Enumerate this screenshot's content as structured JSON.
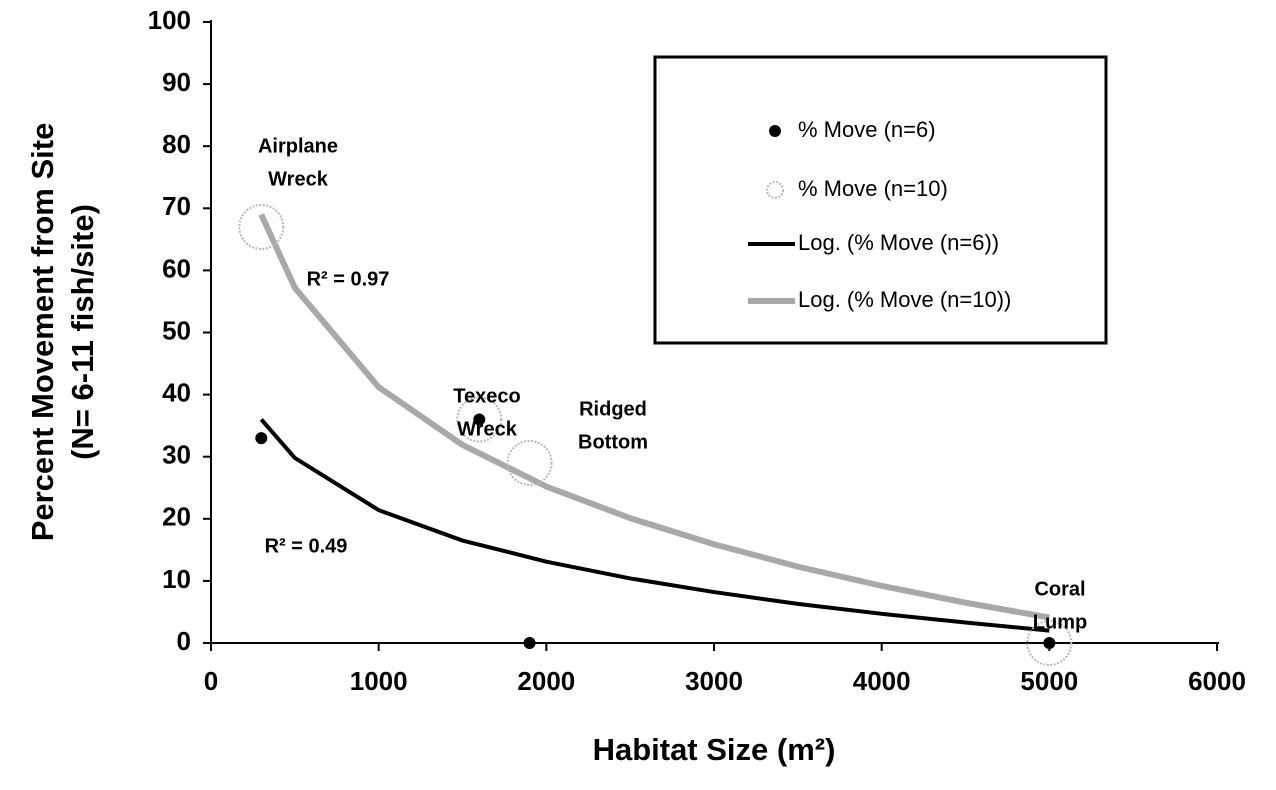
{
  "chart_data": {
    "type": "scatter",
    "xlabel": "Habitat Size (m²)",
    "ylabel": [
      "Percent Movement from Site",
      "(N= 6-11 fish/site)"
    ],
    "xlim": [
      0,
      6000
    ],
    "xticks": [
      0,
      1000,
      2000,
      3000,
      4000,
      5000,
      6000
    ],
    "ylim": [
      0,
      100
    ],
    "yticks": [
      0,
      10,
      20,
      30,
      40,
      50,
      60,
      70,
      80,
      90,
      100
    ],
    "legend": "upper right",
    "series": [
      {
        "name": "% Move (n=6)",
        "marker": "filled",
        "color": "#000000",
        "x": [
          300,
          1600,
          1900,
          5000
        ],
        "values": [
          33,
          36,
          0,
          0
        ]
      },
      {
        "name": "% Move (n=10)",
        "marker": "open",
        "color": "#b8b8b8",
        "x": [
          300,
          1600,
          1900,
          5000
        ],
        "values": [
          67,
          36,
          29,
          0
        ]
      },
      {
        "name": "Log. (% Move (n=6))",
        "marker": "line",
        "color": "#000000",
        "x": [
          300,
          500,
          1000,
          1500,
          2000,
          2500,
          3000,
          3500,
          4000,
          4500,
          5000
        ],
        "values": [
          36.0,
          29.8,
          21.4,
          16.5,
          13.1,
          10.4,
          8.2,
          6.3,
          4.7,
          3.3,
          2.0
        ]
      },
      {
        "name": "Log. (% Move (n=10))",
        "marker": "line",
        "color": "#a8a8a8",
        "x": [
          300,
          500,
          1000,
          1500,
          2000,
          2500,
          3000,
          3500,
          4000,
          4500,
          5000
        ],
        "values": [
          69.0,
          57.2,
          41.2,
          31.9,
          25.2,
          20.1,
          15.9,
          12.3,
          9.2,
          6.5,
          4.1
        ]
      }
    ],
    "annotations": [
      {
        "lines": [
          "Airplane",
          "Wreck"
        ]
      },
      {
        "lines": [
          "Texeco",
          "Wreck"
        ]
      },
      {
        "lines": [
          "Ridged",
          "Bottom"
        ]
      },
      {
        "lines": [
          "Coral",
          "Lump"
        ]
      },
      {
        "lines": [
          "R² = 0.97"
        ]
      },
      {
        "lines": [
          "R² = 0.49"
        ]
      }
    ]
  }
}
